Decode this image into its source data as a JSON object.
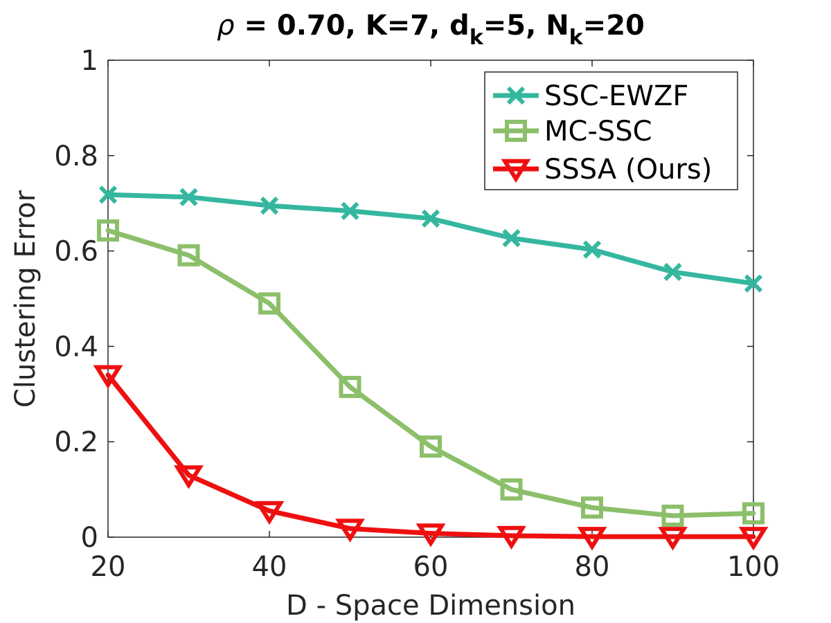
{
  "chart_data": {
    "type": "line",
    "title": {
      "symbol": "ρ",
      "text": " = 0.70, K=7, d",
      "sub1": "k",
      "mid": "=5, N",
      "sub2": "k",
      "end": "=20"
    },
    "xlabel": "D - Space Dimension",
    "ylabel": "Clustering Error",
    "xlim": [
      20,
      100
    ],
    "ylim": [
      0,
      1
    ],
    "xticks": [
      20,
      40,
      60,
      80,
      100
    ],
    "xtick_labels": [
      "20",
      "40",
      "60",
      "80",
      "100"
    ],
    "yticks": [
      0,
      0.2,
      0.4,
      0.6,
      0.8,
      1
    ],
    "ytick_labels": [
      "0",
      "0.2",
      "0.4",
      "0.6",
      "0.8",
      "1"
    ],
    "grid": false,
    "legend_position": "top-right",
    "x": [
      20,
      30,
      40,
      50,
      60,
      70,
      80,
      90,
      100
    ],
    "series": [
      {
        "name": "SSC-EWZF",
        "color": "#35b79f",
        "marker": "x",
        "values": [
          0.718,
          0.713,
          0.695,
          0.684,
          0.668,
          0.627,
          0.603,
          0.556,
          0.532
        ]
      },
      {
        "name": "MC-SSC",
        "color": "#8cbf6a",
        "marker": "square",
        "values": [
          0.643,
          0.591,
          0.49,
          0.315,
          0.19,
          0.1,
          0.062,
          0.045,
          0.05
        ]
      },
      {
        "name": "SSSA (Ours)",
        "color": "#ee1010",
        "marker": "triangle-down",
        "values": [
          0.34,
          0.13,
          0.055,
          0.018,
          0.008,
          0.003,
          0.001,
          0.001,
          0.001
        ]
      }
    ]
  }
}
